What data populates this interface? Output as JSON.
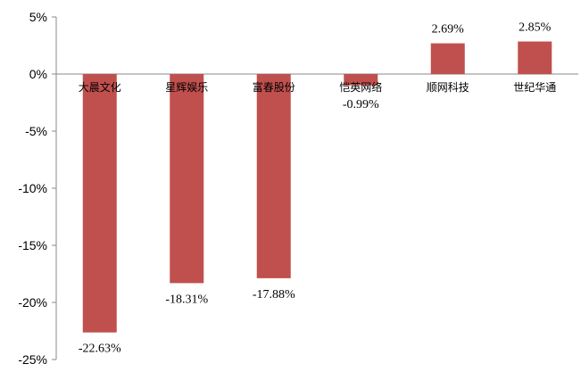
{
  "chart_data": {
    "type": "bar",
    "categories": [
      "大晨文化",
      "星辉娱乐",
      "富春股份",
      "恺英网络",
      "顺网科技",
      "世纪华通"
    ],
    "values": [
      -22.63,
      -18.31,
      -17.88,
      -0.99,
      2.69,
      2.85
    ],
    "data_labels": [
      "-22.63%",
      "-18.31%",
      "-17.88%",
      "-0.99%",
      "2.69%",
      "2.85%"
    ],
    "y_ticks": [
      5,
      0,
      -5,
      -10,
      -15,
      -20,
      -25
    ],
    "y_tick_labels": [
      "5%",
      "0%",
      "-5%",
      "-10%",
      "-15%",
      "-20%",
      "-25%"
    ],
    "ylim": [
      -25,
      5
    ],
    "title": "",
    "xlabel": "",
    "ylabel": "",
    "grid": false,
    "bar_color": "#c0504d",
    "axis_color": "#888888"
  }
}
